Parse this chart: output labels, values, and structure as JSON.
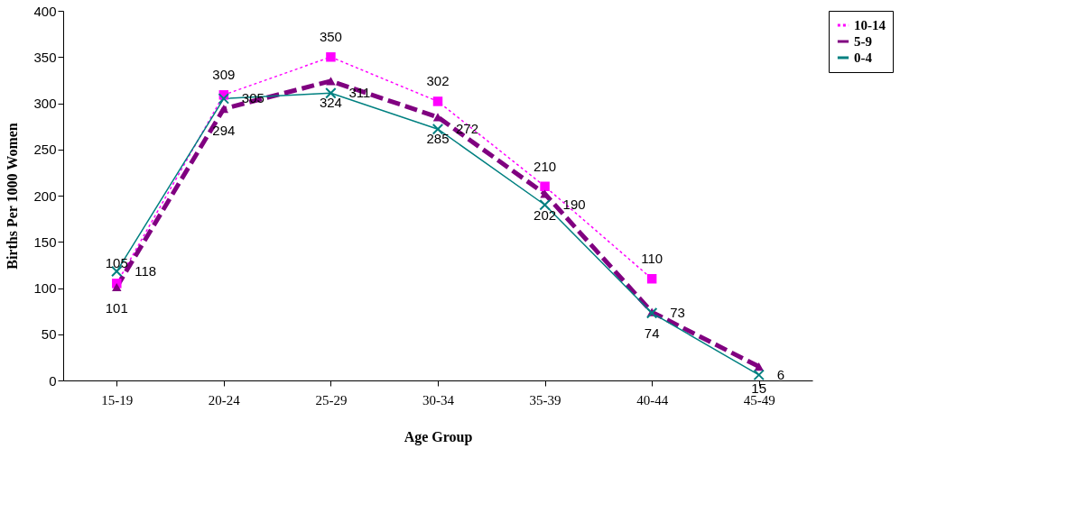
{
  "chart_data": {
    "type": "line",
    "xlabel": "Age Group",
    "ylabel": "Births Per 1000 Women",
    "categories": [
      "15-19",
      "20-24",
      "25-29",
      "30-34",
      "35-39",
      "40-44",
      "45-49"
    ],
    "series": [
      {
        "name": "10-14",
        "color": "#ff00ff",
        "marker": "square",
        "line_style": "dotted",
        "values": [
          105,
          309,
          350,
          302,
          210,
          110,
          null
        ]
      },
      {
        "name": "5-9",
        "color": "#800080",
        "marker": "triangle",
        "line_style": "dashed",
        "values": [
          101,
          294,
          324,
          285,
          202,
          74,
          15
        ]
      },
      {
        "name": "0-4",
        "color": "#008080",
        "marker": "cross",
        "line_style": "solid",
        "values": [
          118,
          305,
          311,
          272,
          190,
          73,
          6
        ]
      }
    ],
    "ylim": [
      0,
      400
    ],
    "yticks": [
      0,
      50,
      100,
      150,
      200,
      250,
      300,
      350,
      400
    ],
    "grid": false,
    "legend": "right",
    "data_labels": true
  }
}
